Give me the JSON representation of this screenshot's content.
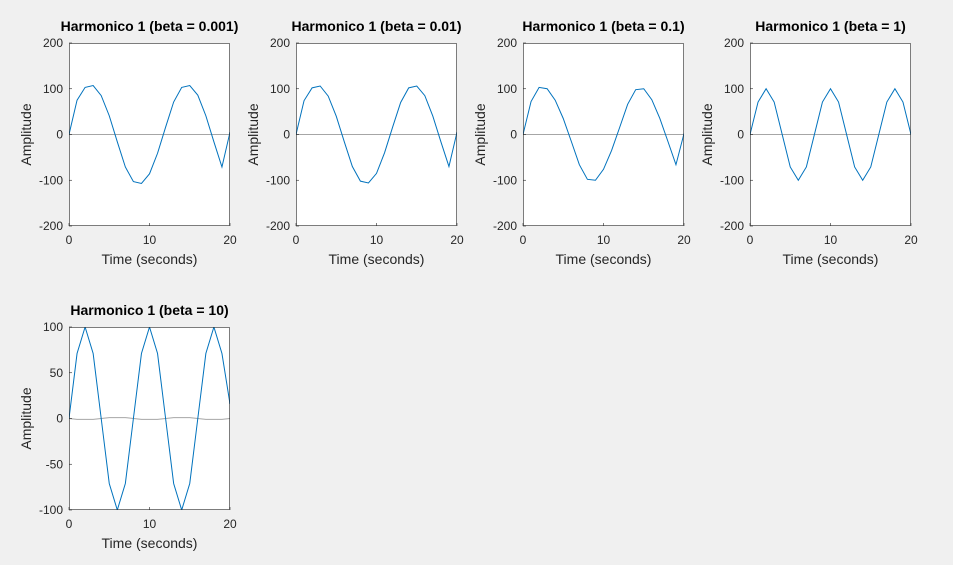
{
  "chart_data": [
    {
      "type": "line",
      "title": "Harmonico 1 (beta = 0.001)",
      "xlabel": "Time (seconds)",
      "ylabel": "Amplitude",
      "xlim": [
        0,
        20
      ],
      "ylim": [
        -200,
        200
      ],
      "xticks": [
        "0",
        "10",
        "20"
      ],
      "yticks": [
        "-200",
        "-100",
        "0",
        "100",
        "200"
      ],
      "series": [
        {
          "color": "#0072bd",
          "values": [
            0,
            75,
            103,
            107,
            85,
            41,
            -16,
            -71,
            -103,
            -107,
            -86,
            -41,
            16,
            71,
            103,
            107,
            86,
            41,
            -16,
            -71,
            5
          ],
          "x": [
            0,
            1,
            2,
            3,
            4,
            5,
            6,
            7,
            8,
            9,
            10,
            11,
            12,
            13,
            14,
            15,
            16,
            17,
            18,
            19,
            20
          ]
        },
        {
          "color": "#a6a6a6",
          "values": [
            0,
            0,
            0,
            0,
            0,
            0,
            0,
            0,
            0,
            0,
            0,
            0,
            0,
            0,
            0,
            0,
            0,
            0,
            0,
            0,
            0
          ],
          "x": [
            0,
            1,
            2,
            3,
            4,
            5,
            6,
            7,
            8,
            9,
            10,
            11,
            12,
            13,
            14,
            15,
            16,
            17,
            18,
            19,
            20
          ]
        }
      ]
    },
    {
      "type": "line",
      "title": "Harmonico 1 (beta = 0.01)",
      "xlabel": "Time (seconds)",
      "ylabel": "Amplitude",
      "xlim": [
        0,
        20
      ],
      "ylim": [
        -200,
        200
      ],
      "xticks": [
        "0",
        "10",
        "20"
      ],
      "yticks": [
        "-200",
        "-100",
        "0",
        "100",
        "200"
      ],
      "series": [
        {
          "color": "#0072bd",
          "values": [
            0,
            74,
            102,
            106,
            84,
            40,
            -16,
            -70,
            -102,
            -106,
            -85,
            -40,
            16,
            70,
            102,
            106,
            85,
            40,
            -16,
            -70,
            5
          ],
          "x": [
            0,
            1,
            2,
            3,
            4,
            5,
            6,
            7,
            8,
            9,
            10,
            11,
            12,
            13,
            14,
            15,
            16,
            17,
            18,
            19,
            20
          ]
        },
        {
          "color": "#a6a6a6",
          "values": [
            0,
            0,
            0,
            0,
            0,
            0,
            0,
            0,
            0,
            0,
            0,
            0,
            0,
            0,
            0,
            0,
            0,
            0,
            0,
            0,
            0
          ],
          "x": [
            0,
            1,
            2,
            3,
            4,
            5,
            6,
            7,
            8,
            9,
            10,
            11,
            12,
            13,
            14,
            15,
            16,
            17,
            18,
            19,
            20
          ]
        }
      ]
    },
    {
      "type": "line",
      "title": "Harmonico 1 (beta = 0.1)",
      "xlabel": "Time (seconds)",
      "ylabel": "Amplitude",
      "xlim": [
        0,
        20
      ],
      "ylim": [
        -200,
        200
      ],
      "xticks": [
        "0",
        "10",
        "20"
      ],
      "yticks": [
        "-200",
        "-100",
        "0",
        "100",
        "200"
      ],
      "series": [
        {
          "color": "#0072bd",
          "values": [
            0,
            72,
            103,
            100,
            75,
            35,
            -15,
            -66,
            -98,
            -100,
            -76,
            -35,
            15,
            66,
            98,
            100,
            76,
            35,
            -15,
            -66,
            2
          ],
          "x": [
            0,
            1,
            2,
            3,
            4,
            5,
            6,
            7,
            8,
            9,
            10,
            11,
            12,
            13,
            14,
            15,
            16,
            17,
            18,
            19,
            20
          ]
        },
        {
          "color": "#a6a6a6",
          "values": [
            0,
            0,
            0,
            0,
            0,
            0,
            0,
            0,
            0,
            0,
            0,
            0,
            0,
            0,
            0,
            0,
            0,
            0,
            0,
            0,
            0
          ],
          "x": [
            0,
            1,
            2,
            3,
            4,
            5,
            6,
            7,
            8,
            9,
            10,
            11,
            12,
            13,
            14,
            15,
            16,
            17,
            18,
            19,
            20
          ]
        }
      ]
    },
    {
      "type": "line",
      "title": "Harmonico 1 (beta = 1)",
      "xlabel": "Time (seconds)",
      "ylabel": "Amplitude",
      "xlim": [
        0,
        20
      ],
      "ylim": [
        -200,
        200
      ],
      "xticks": [
        "0",
        "10",
        "20"
      ],
      "yticks": [
        "-200",
        "-100",
        "0",
        "100",
        "200"
      ],
      "series": [
        {
          "color": "#0072bd",
          "values": [
            0,
            71,
            100,
            71,
            0,
            -71,
            -100,
            -71,
            0,
            71,
            100,
            71,
            0,
            -71,
            -100,
            -71,
            0,
            71,
            100,
            71,
            0
          ],
          "x": [
            0,
            1,
            2,
            3,
            4,
            5,
            6,
            7,
            8,
            9,
            10,
            11,
            12,
            13,
            14,
            15,
            16,
            17,
            18,
            19,
            20
          ]
        },
        {
          "color": "#a6a6a6",
          "values": [
            0,
            0,
            0,
            0,
            0,
            0,
            0,
            0,
            0,
            0,
            0,
            0,
            0,
            0,
            0,
            0,
            0,
            0,
            0,
            0,
            0
          ],
          "x": [
            0,
            1,
            2,
            3,
            4,
            5,
            6,
            7,
            8,
            9,
            10,
            11,
            12,
            13,
            14,
            15,
            16,
            17,
            18,
            19,
            20
          ]
        }
      ]
    },
    {
      "type": "line",
      "title": "Harmonico 1 (beta = 10)",
      "xlabel": "Time (seconds)",
      "ylabel": "Amplitude",
      "xlim": [
        0,
        20
      ],
      "ylim": [
        -100,
        100
      ],
      "xticks": [
        "0",
        "10",
        "20"
      ],
      "yticks": [
        "-100",
        "-50",
        "0",
        "50",
        "100"
      ],
      "series": [
        {
          "color": "#0072bd",
          "values": [
            0,
            71,
            100,
            71,
            0,
            -71,
            -100,
            -71,
            0,
            71,
            100,
            71,
            0,
            -71,
            -100,
            -71,
            0,
            71,
            100,
            71,
            16
          ],
          "x": [
            0,
            1,
            2,
            3,
            4,
            5,
            6,
            7,
            8,
            9,
            10,
            11,
            12,
            13,
            14,
            15,
            16,
            17,
            18,
            19,
            20
          ]
        },
        {
          "color": "#a6a6a6",
          "values": [
            0,
            -1,
            -1,
            -1,
            0,
            1,
            1,
            1,
            0,
            -1,
            -1,
            -1,
            0,
            1,
            1,
            1,
            0,
            -1,
            -1,
            -1,
            0
          ],
          "x": [
            0,
            1,
            2,
            3,
            4,
            5,
            6,
            7,
            8,
            9,
            10,
            11,
            12,
            13,
            14,
            15,
            16,
            17,
            18,
            19,
            20
          ]
        }
      ]
    }
  ]
}
